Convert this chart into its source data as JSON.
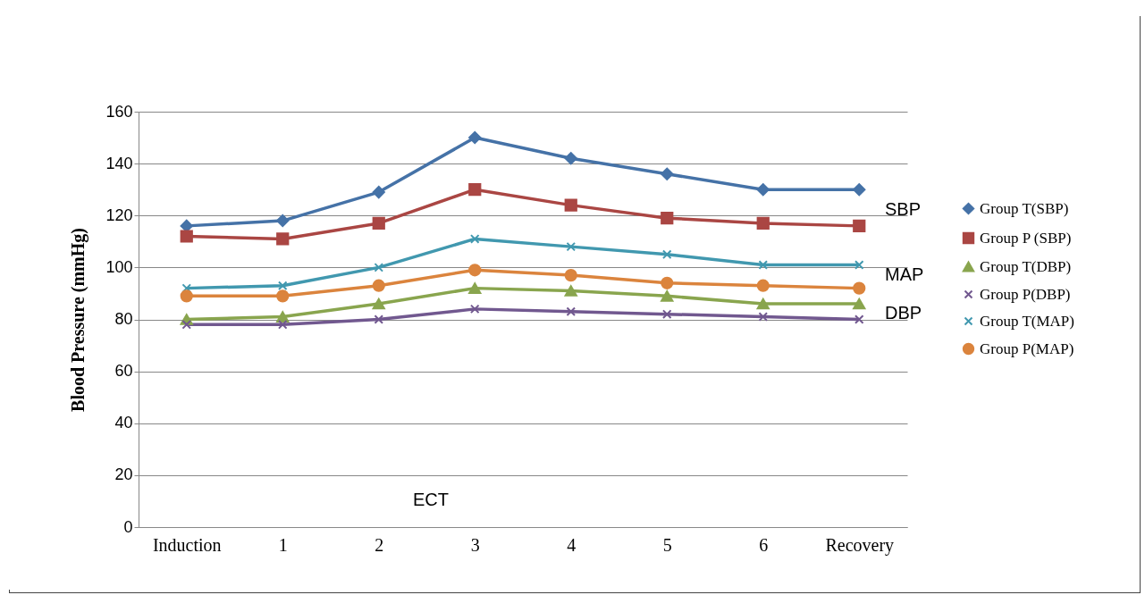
{
  "chart_data": {
    "type": "line",
    "ylabel": "Blood Pressure (mmHg)",
    "categories": [
      "Induction",
      "1",
      "2",
      "3",
      "4",
      "5",
      "6",
      "Recovery"
    ],
    "series": [
      {
        "name": "Group T(SBP)",
        "color": "#4572a7",
        "marker": "diamond",
        "values": [
          116,
          118,
          129,
          150,
          142,
          136,
          130,
          130
        ]
      },
      {
        "name": "Group P (SBP)",
        "color": "#aa4643",
        "marker": "square",
        "values": [
          112,
          111,
          117,
          130,
          124,
          119,
          117,
          116
        ]
      },
      {
        "name": "Group T(DBP)",
        "color": "#89a54e",
        "marker": "triangle",
        "values": [
          80,
          81,
          86,
          92,
          91,
          89,
          86,
          86
        ]
      },
      {
        "name": "Group P(DBP)",
        "color": "#71588f",
        "marker": "cross",
        "values": [
          78,
          78,
          80,
          84,
          83,
          82,
          81,
          80
        ]
      },
      {
        "name": "Group T(MAP)",
        "color": "#4198af",
        "marker": "cross",
        "values": [
          92,
          93,
          100,
          111,
          108,
          105,
          101,
          101
        ]
      },
      {
        "name": "Group P(MAP)",
        "color": "#db843d",
        "marker": "circle",
        "values": [
          89,
          89,
          93,
          99,
          97,
          94,
          93,
          92
        ]
      }
    ],
    "ylim": [
      0,
      160
    ],
    "yticks": [
      0,
      20,
      40,
      60,
      80,
      100,
      120,
      140,
      160
    ],
    "grid": "y",
    "legend": "right",
    "annotations": [
      "SBP",
      "MAP",
      "DBP",
      "ECT"
    ]
  }
}
